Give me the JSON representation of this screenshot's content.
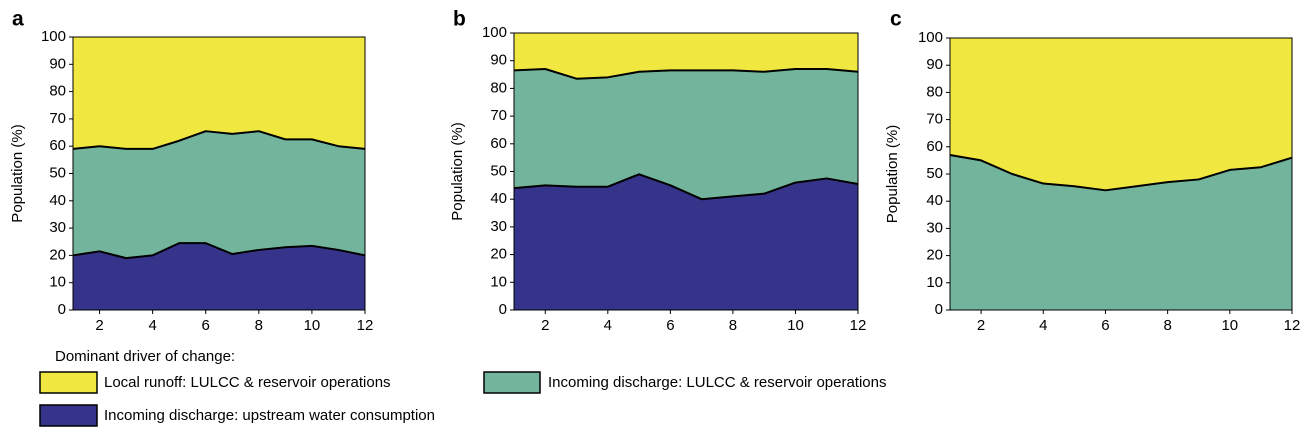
{
  "legend_title": "Dominant driver of change:",
  "chart_data": [
    {
      "type": "area",
      "stacked": true,
      "title": "a",
      "ylabel": "Population (%)",
      "x": [
        1,
        2,
        3,
        4,
        5,
        6,
        7,
        8,
        9,
        10,
        11,
        12
      ],
      "xlim": [
        1,
        12
      ],
      "ylim": [
        0,
        100
      ],
      "xticks": [
        2,
        4,
        6,
        8,
        10,
        12
      ],
      "yticks": [
        0,
        10,
        20,
        30,
        40,
        50,
        60,
        70,
        80,
        90,
        100
      ],
      "series": [
        {
          "name": "Incoming discharge:  upstream water consumption",
          "color": "#35348a",
          "values": [
            20,
            21.5,
            19,
            20,
            24.5,
            24.5,
            20.5,
            22,
            23,
            23.5,
            22,
            20
          ]
        },
        {
          "name": "Incoming discharge: LULCC & reservoir operations",
          "color": "#72b59c",
          "values": [
            39,
            38.5,
            40,
            39,
            37.5,
            41,
            44,
            43.5,
            39.5,
            39,
            38,
            39
          ]
        },
        {
          "name": "Local runoff: LULCC & reservoir operations",
          "color": "#f0e840",
          "values": [
            41,
            40,
            41,
            41,
            38,
            34.5,
            35.5,
            34.5,
            37.5,
            37.5,
            40,
            41
          ]
        }
      ]
    },
    {
      "type": "area",
      "stacked": true,
      "title": "b",
      "ylabel": "Population (%)",
      "x": [
        1,
        2,
        3,
        4,
        5,
        6,
        7,
        8,
        9,
        10,
        11,
        12
      ],
      "xlim": [
        1,
        12
      ],
      "ylim": [
        0,
        100
      ],
      "xticks": [
        2,
        4,
        6,
        8,
        10,
        12
      ],
      "yticks": [
        0,
        10,
        20,
        30,
        40,
        50,
        60,
        70,
        80,
        90,
        100
      ],
      "series": [
        {
          "name": "Incoming discharge:  upstream water consumption",
          "color": "#35348a",
          "values": [
            44,
            45,
            44.5,
            44.5,
            49,
            45,
            40,
            41,
            42,
            46,
            47.5,
            45.5
          ]
        },
        {
          "name": "Incoming discharge: LULCC & reservoir operations",
          "color": "#72b59c",
          "values": [
            42.5,
            42,
            39,
            39.5,
            37,
            41.5,
            46.5,
            45.5,
            44,
            41,
            39.5,
            40.5
          ]
        },
        {
          "name": "Local runoff: LULCC & reservoir operations",
          "color": "#f0e840",
          "values": [
            13.5,
            13,
            16.5,
            16,
            14,
            13.5,
            13.5,
            13.5,
            14,
            13,
            13,
            14
          ]
        }
      ]
    },
    {
      "type": "area",
      "stacked": true,
      "title": "c",
      "ylabel": "Population (%)",
      "x": [
        1,
        2,
        3,
        4,
        5,
        6,
        7,
        8,
        9,
        10,
        11,
        12
      ],
      "xlim": [
        1,
        12
      ],
      "ylim": [
        0,
        100
      ],
      "xticks": [
        2,
        4,
        6,
        8,
        10,
        12
      ],
      "yticks": [
        0,
        10,
        20,
        30,
        40,
        50,
        60,
        70,
        80,
        90,
        100
      ],
      "series": [
        {
          "name": "Incoming discharge: LULCC & reservoir operations",
          "color": "#72b59c",
          "values": [
            57,
            55,
            50,
            46.5,
            45.5,
            44,
            45.5,
            47,
            48,
            51.5,
            52.5,
            56
          ]
        },
        {
          "name": "Local runoff: LULCC & reservoir operations",
          "color": "#f0e840",
          "values": [
            43,
            45,
            50,
            53.5,
            54.5,
            56,
            54.5,
            53,
            52,
            48.5,
            47.5,
            44
          ]
        }
      ]
    }
  ]
}
